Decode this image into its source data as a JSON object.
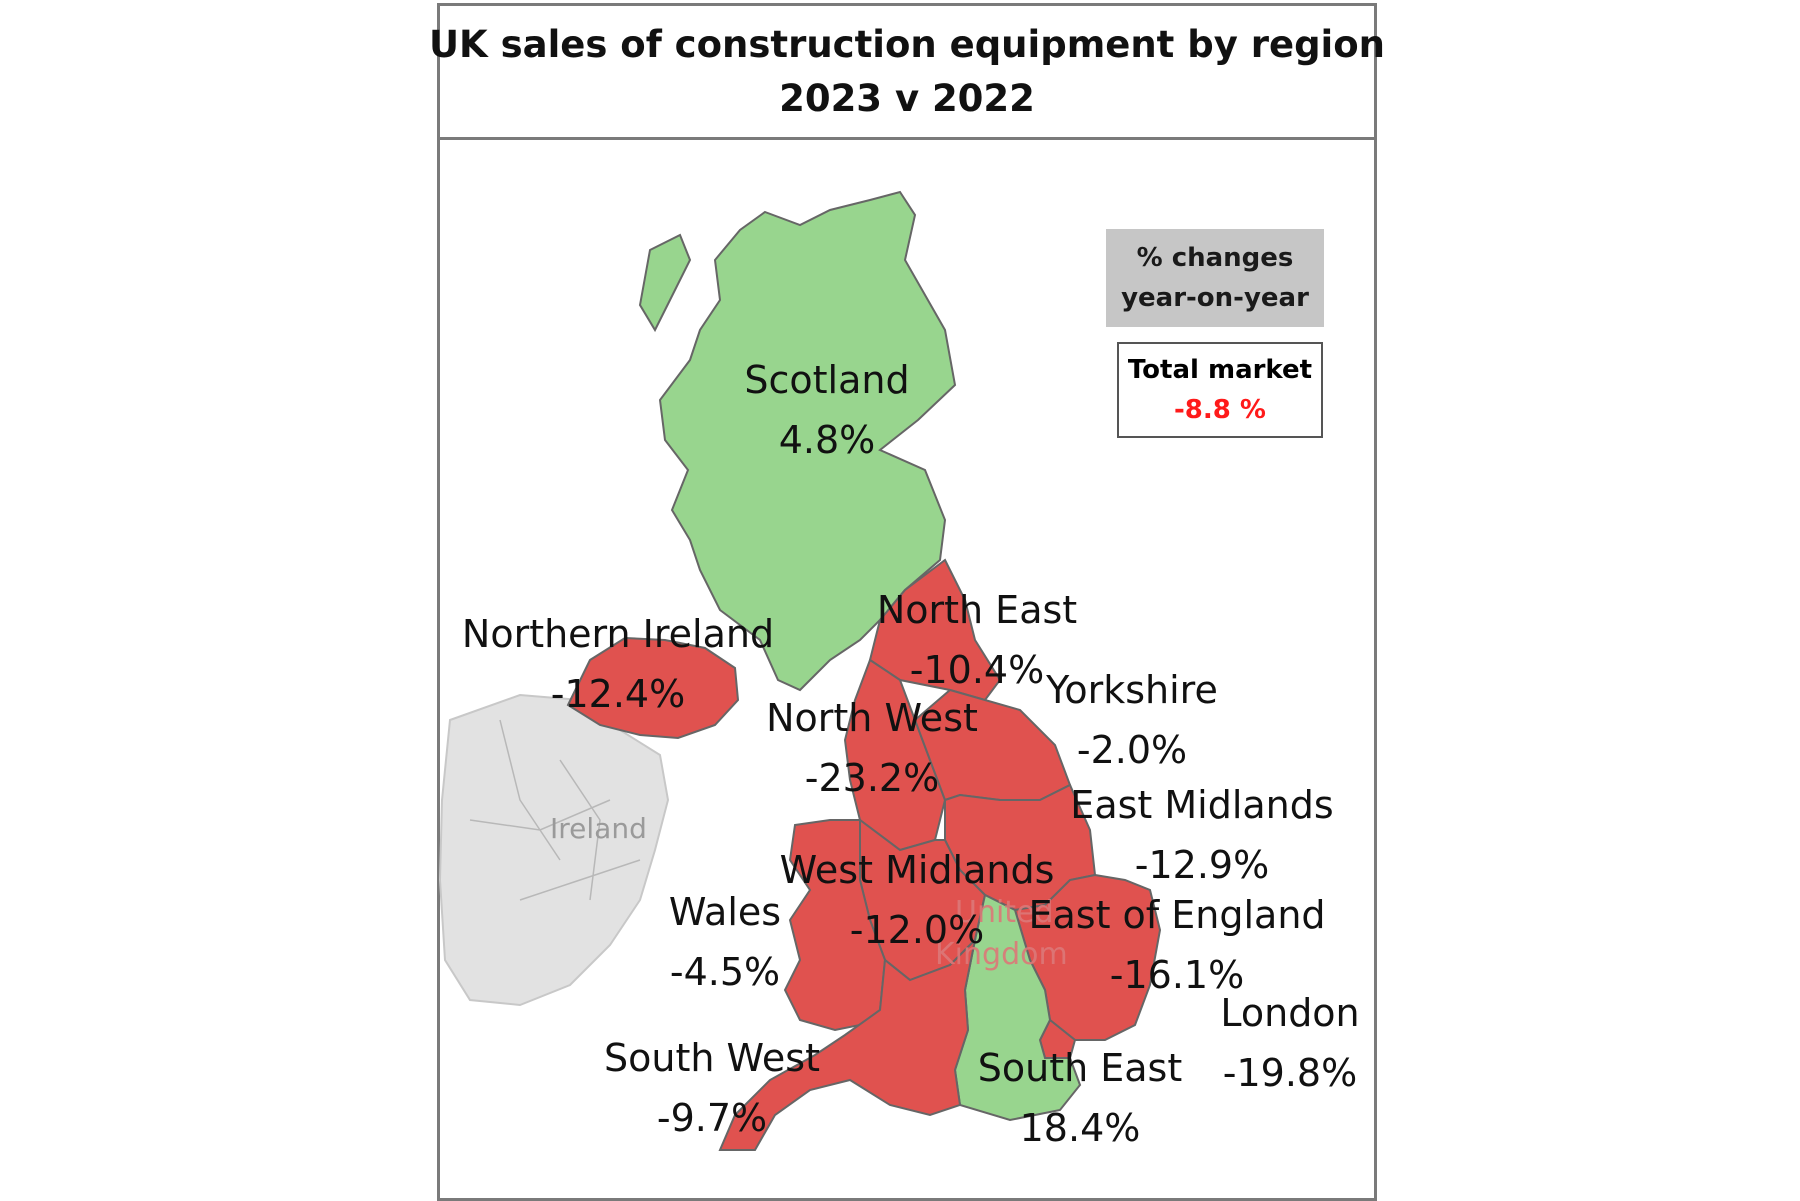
{
  "title": {
    "line1": "UK sales of construction equipment by region",
    "line2": "2023  v  2022"
  },
  "legend": {
    "line1": "% changes",
    "line2": "year-on-year"
  },
  "total_market": {
    "label": "Total market",
    "value": "-8.8 %"
  },
  "basemap": {
    "ireland": "Ireland",
    "uk_line1": "United",
    "uk_line2": "Kingdom"
  },
  "colors": {
    "increase": "#98d58e",
    "decrease": "#e0524f",
    "neutral": "#e2e2e2",
    "total_negative": "#ff1a1a"
  },
  "regions": [
    {
      "key": "scotland",
      "name": "Scotland",
      "value": "4.8%",
      "trend": "increase"
    },
    {
      "key": "north_east",
      "name": "North East",
      "value": "-10.4%",
      "trend": "decrease"
    },
    {
      "key": "northern_ireland",
      "name": "Northern Ireland",
      "value": "-12.4%",
      "trend": "decrease"
    },
    {
      "key": "yorkshire",
      "name": "Yorkshire",
      "value": "-2.0%",
      "trend": "decrease"
    },
    {
      "key": "north_west",
      "name": "North West",
      "value": "-23.2%",
      "trend": "decrease"
    },
    {
      "key": "east_midlands",
      "name": "East Midlands",
      "value": "-12.9%",
      "trend": "decrease"
    },
    {
      "key": "west_midlands",
      "name": "West Midlands",
      "value": "-12.0%",
      "trend": "decrease"
    },
    {
      "key": "wales",
      "name": "Wales",
      "value": "-4.5%",
      "trend": "decrease"
    },
    {
      "key": "east_of_england",
      "name": "East of England",
      "value": "-16.1%",
      "trend": "decrease"
    },
    {
      "key": "london",
      "name": "London",
      "value": "-19.8%",
      "trend": "decrease"
    },
    {
      "key": "south_west",
      "name": "South West",
      "value": "-9.7%",
      "trend": "decrease"
    },
    {
      "key": "south_east",
      "name": "South East",
      "value": "18.4%",
      "trend": "increase"
    }
  ]
}
